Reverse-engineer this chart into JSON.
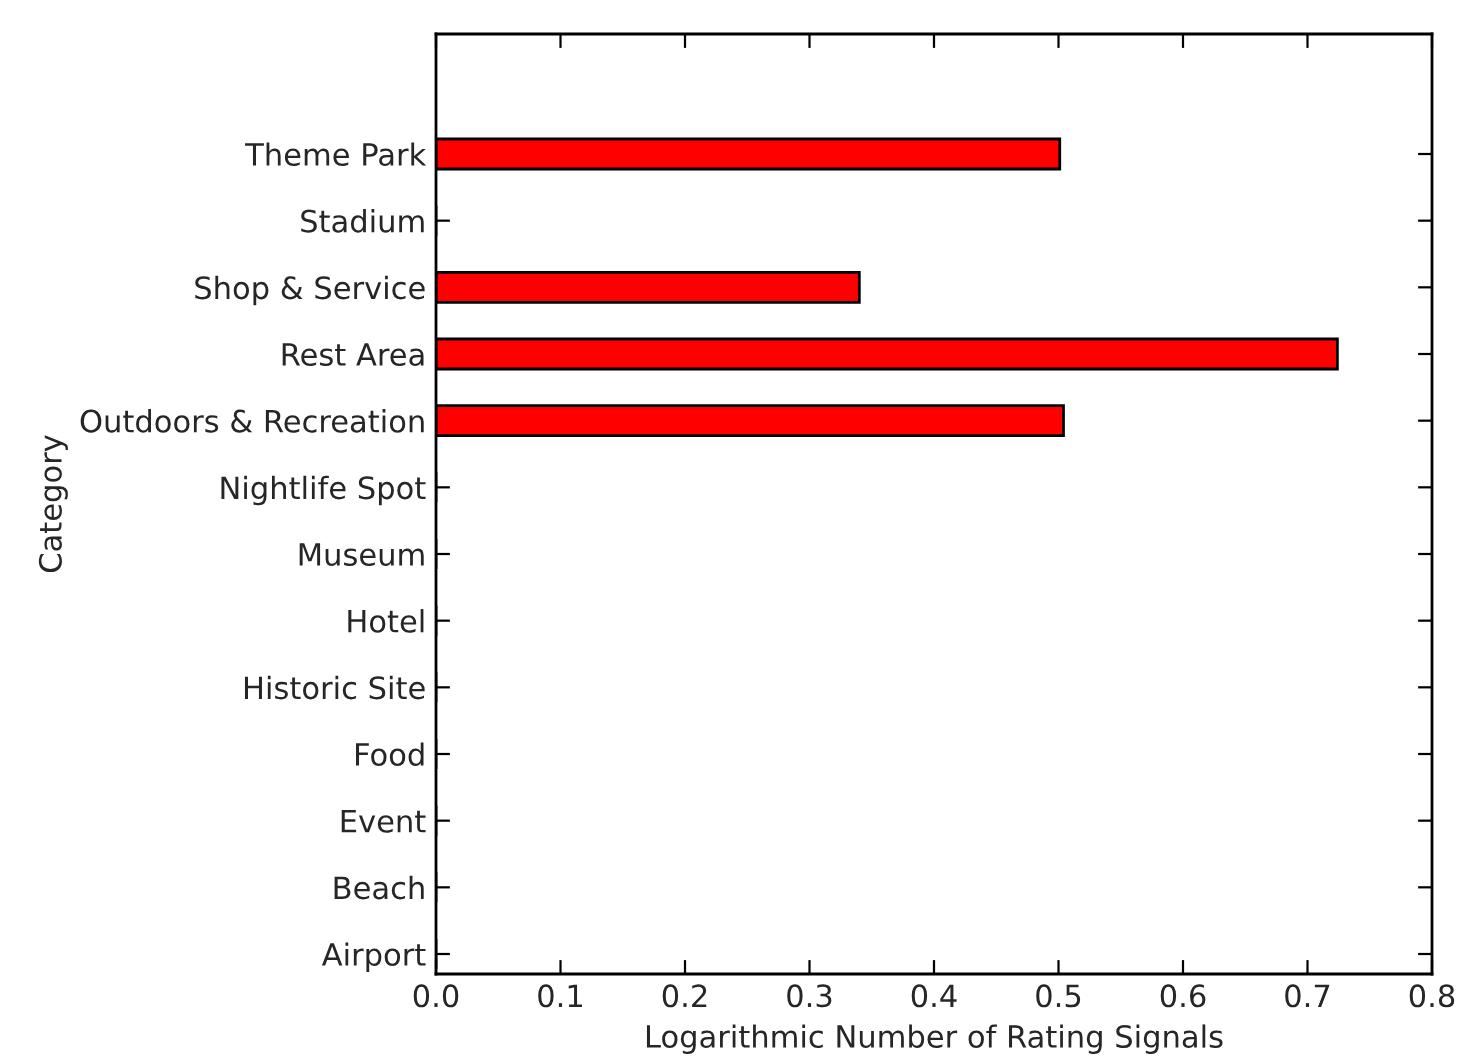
{
  "chart_data": {
    "type": "bar",
    "orientation": "horizontal",
    "xlabel": "Logarithmic Number of Rating Signals",
    "ylabel": "Category",
    "categories": [
      "Theme Park",
      "Stadium",
      "Shop & Service",
      "Rest Area",
      "Outdoors & Recreation",
      "Nightlife Spot",
      "Museum",
      "Hotel",
      "Historic Site",
      "Food",
      "Event",
      "Beach",
      "Airport"
    ],
    "values": [
      0.501,
      0,
      0.34,
      0.724,
      0.504,
      0,
      0,
      0,
      0,
      0,
      0,
      0,
      0
    ],
    "color": "#ff0000",
    "xlim": [
      0,
      0.8
    ],
    "xticks": [
      {
        "value": 0,
        "label": "0.0"
      },
      0.1,
      0.2,
      0.3,
      0.4,
      0.5,
      0.6,
      0.7,
      0.8
    ],
    "grid": false,
    "legend": false
  }
}
